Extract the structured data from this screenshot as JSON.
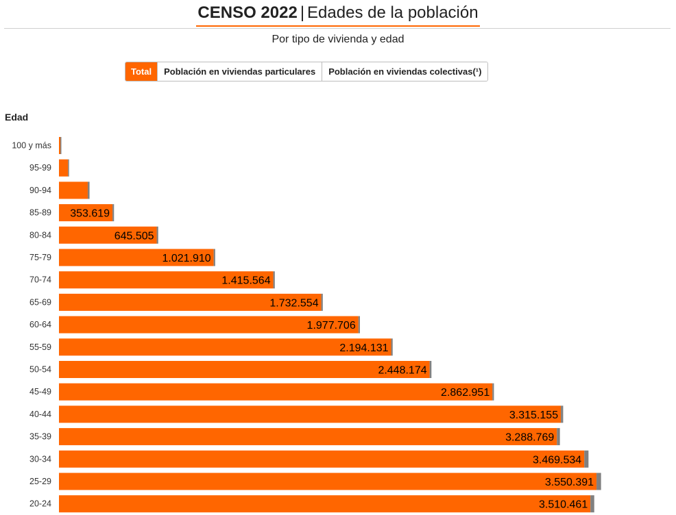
{
  "header": {
    "title_strong": "CENSO 2022",
    "title_separator": "|",
    "title_rest": "Edades de la población",
    "subtitle": "Por tipo de vivienda y edad"
  },
  "tabs": [
    {
      "label": "Total",
      "active": true
    },
    {
      "label": "Población en viviendas particulares",
      "active": false
    },
    {
      "label": "Población en viviendas colectivas(¹)",
      "active": false
    }
  ],
  "colors": {
    "accent": "#ff6600",
    "secondary_bar": "#808080"
  },
  "chart_data": {
    "type": "bar",
    "orientation": "horizontal",
    "ylabel": "Edad",
    "categories": [
      "100 y más",
      "95-99",
      "90-94",
      "85-89",
      "80-84",
      "75-79",
      "70-74",
      "65-69",
      "60-64",
      "55-59",
      "50-54",
      "45-49",
      "40-44",
      "35-39",
      "30-34",
      "25-29",
      "20-24"
    ],
    "series": [
      {
        "values": [
          9000,
          60000,
          190000,
          353619,
          645505,
          1021910,
          1415564,
          1732554,
          1977706,
          2194131,
          2448174,
          2862951,
          3315155,
          3288769,
          3469534,
          3550391,
          3510461
        ]
      },
      {
        "values": [
          2000,
          4000,
          12000,
          10000,
          10000,
          10000,
          10000,
          10000,
          10000,
          10000,
          12000,
          10000,
          15000,
          20000,
          28000,
          30000,
          25000
        ]
      }
    ],
    "data_labels": [
      "",
      "",
      "",
      "353.619",
      "645.505",
      "1.021.910",
      "1.415.564",
      "1.732.554",
      "1.977.706",
      "2.194.131",
      "2.448.174",
      "2.862.951",
      "3.315.155",
      "3.288.769",
      "3.469.534",
      "3.550.391",
      "3.510.461"
    ],
    "xlim": [
      0,
      3600000
    ],
    "grid": false,
    "legend": "none"
  }
}
